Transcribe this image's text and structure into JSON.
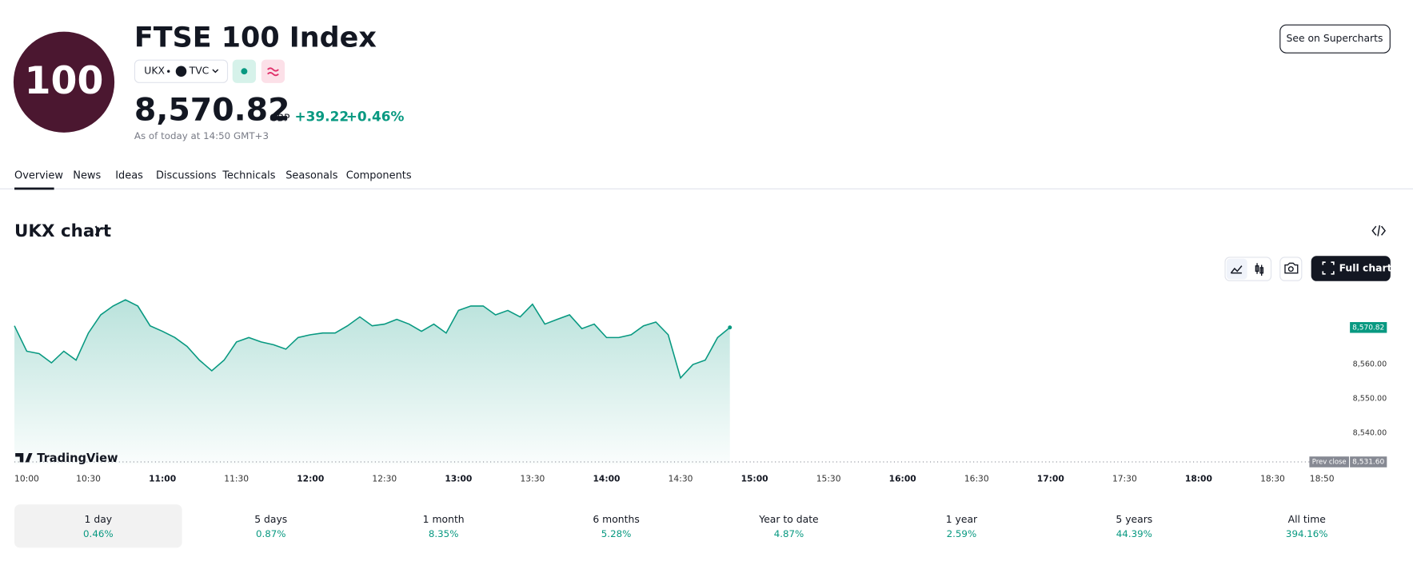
{
  "header": {
    "logo": "100",
    "title": "FTSE 100 Index",
    "symbol": "UKX",
    "exchange": "TVC",
    "price": "8,570.82",
    "currency": "GBP",
    "change": "+39.22",
    "change_percent": "+0.46%",
    "as_of": "As of today at 14:50 GMT+3",
    "button": "See on Supercharts"
  },
  "tabs": [
    "Overview",
    "News",
    "Ideas",
    "Discussions",
    "Technicals",
    "Seasonals",
    "Components"
  ],
  "chart_section": {
    "title": "UKX chart",
    "button": "Full chart",
    "brand": "TradingView"
  },
  "chart_data": {
    "type": "area",
    "color": "#089981",
    "x": [
      "10:00",
      "10:05",
      "10:10",
      "10:15",
      "10:20",
      "10:25",
      "10:30",
      "10:35",
      "10:40",
      "10:45",
      "10:50",
      "10:55",
      "11:00",
      "11:05",
      "11:10",
      "11:15",
      "11:20",
      "11:25",
      "11:30",
      "11:35",
      "11:40",
      "11:45",
      "11:50",
      "11:55",
      "12:00",
      "12:05",
      "12:10",
      "12:15",
      "12:20",
      "12:25",
      "12:30",
      "12:35",
      "12:40",
      "12:45",
      "12:50",
      "12:55",
      "13:00",
      "13:05",
      "13:10",
      "13:15",
      "13:20",
      "13:25",
      "13:30",
      "13:35",
      "13:40",
      "13:45",
      "13:50",
      "13:55",
      "14:00",
      "14:05",
      "14:10",
      "14:15",
      "14:20",
      "14:25",
      "14:30",
      "14:35",
      "14:40",
      "14:45",
      "14:50"
    ],
    "values": [
      8571.3,
      8563.9,
      8563.2,
      8560.5,
      8563.9,
      8561.3,
      8569.2,
      8574.5,
      8577.1,
      8578.9,
      8577.1,
      8571.3,
      8569.7,
      8567.9,
      8565.3,
      8561.3,
      8558.2,
      8561.3,
      8566.6,
      8567.9,
      8566.6,
      8565.8,
      8564.5,
      8567.9,
      8568.7,
      8569.2,
      8569.2,
      8571.3,
      8573.9,
      8571.3,
      8571.8,
      8573.2,
      8571.8,
      8569.7,
      8571.8,
      8569.2,
      8575.8,
      8577.1,
      8577.1,
      8574.5,
      8575.8,
      8573.9,
      8577.6,
      8571.8,
      8573.2,
      8574.5,
      8570.5,
      8571.8,
      8567.9,
      8567.9,
      8568.7,
      8571.3,
      8572.4,
      8568.7,
      8556.1,
      8560.0,
      8561.3,
      8567.9,
      8570.82
    ],
    "xlim": [
      "10:00",
      "18:50"
    ],
    "xticks": [
      "10:00",
      "10:30",
      "11:00",
      "11:30",
      "12:00",
      "12:30",
      "13:00",
      "13:30",
      "14:00",
      "14:30",
      "15:00",
      "15:30",
      "16:00",
      "16:30",
      "17:00",
      "17:30",
      "18:00",
      "18:30",
      "18:50"
    ],
    "ylim": [
      8531,
      8582.5
    ],
    "yticks": [
      {
        "value": 8540,
        "label": "8,540.00"
      },
      {
        "value": 8550,
        "label": "8,550.00"
      },
      {
        "value": 8560,
        "label": "8,560.00"
      }
    ],
    "prev_close": {
      "name": "Prev close",
      "value": 8531.6,
      "label": "8,531.60"
    }
  },
  "periods": [
    {
      "label": "1 day",
      "change": "0.46%"
    },
    {
      "label": "5 days",
      "change": "0.87%"
    },
    {
      "label": "1 month",
      "change": "8.35%"
    },
    {
      "label": "6 months",
      "change": "5.28%"
    },
    {
      "label": "Year to date",
      "change": "4.87%"
    },
    {
      "label": "1 year",
      "change": "2.59%"
    },
    {
      "label": "5 years",
      "change": "44.39%"
    },
    {
      "label": "All time",
      "change": "394.16%"
    }
  ]
}
